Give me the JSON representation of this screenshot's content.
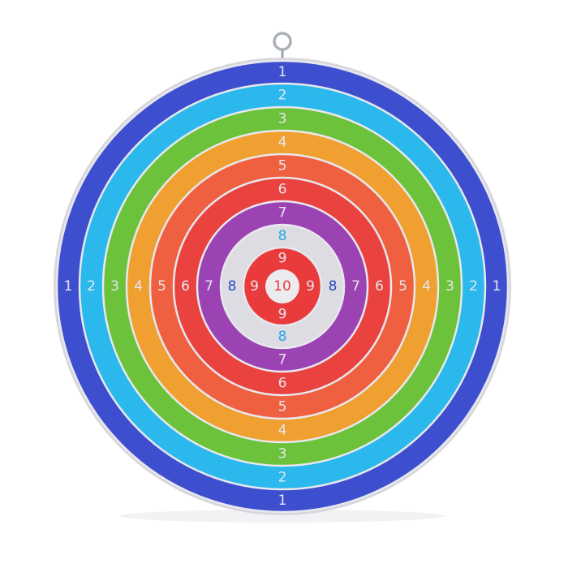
{
  "target": {
    "rings": [
      {
        "label": "1",
        "color": "#3d4fcf",
        "text_color": "#e6e6ee"
      },
      {
        "label": "2",
        "color": "#2bb8ec",
        "text_color": "#e6e6ee"
      },
      {
        "label": "3",
        "color": "#6cc23a",
        "text_color": "#e6e6ee"
      },
      {
        "label": "4",
        "color": "#f0a030",
        "text_color": "#e6e6ee"
      },
      {
        "label": "5",
        "color": "#ef6040",
        "text_color": "#e6e6ee"
      },
      {
        "label": "6",
        "color": "#e9423f",
        "text_color": "#e6e6ee"
      },
      {
        "label": "7",
        "color": "#9c43b4",
        "text_color": "#e6e6ee"
      },
      {
        "label": "8",
        "color": "#dcdce2",
        "text_color": "#2b48c8",
        "text_color_vertical": "#22a8e6"
      },
      {
        "label": "9",
        "color": "#e93b3c",
        "text_color": "#e6e6ee"
      }
    ],
    "bullseye": {
      "label": "10",
      "color": "#ececf0",
      "text_color": "#e93b3c"
    },
    "separator_color": "#e8e8ee",
    "rim_color": "#d6d6dc"
  }
}
